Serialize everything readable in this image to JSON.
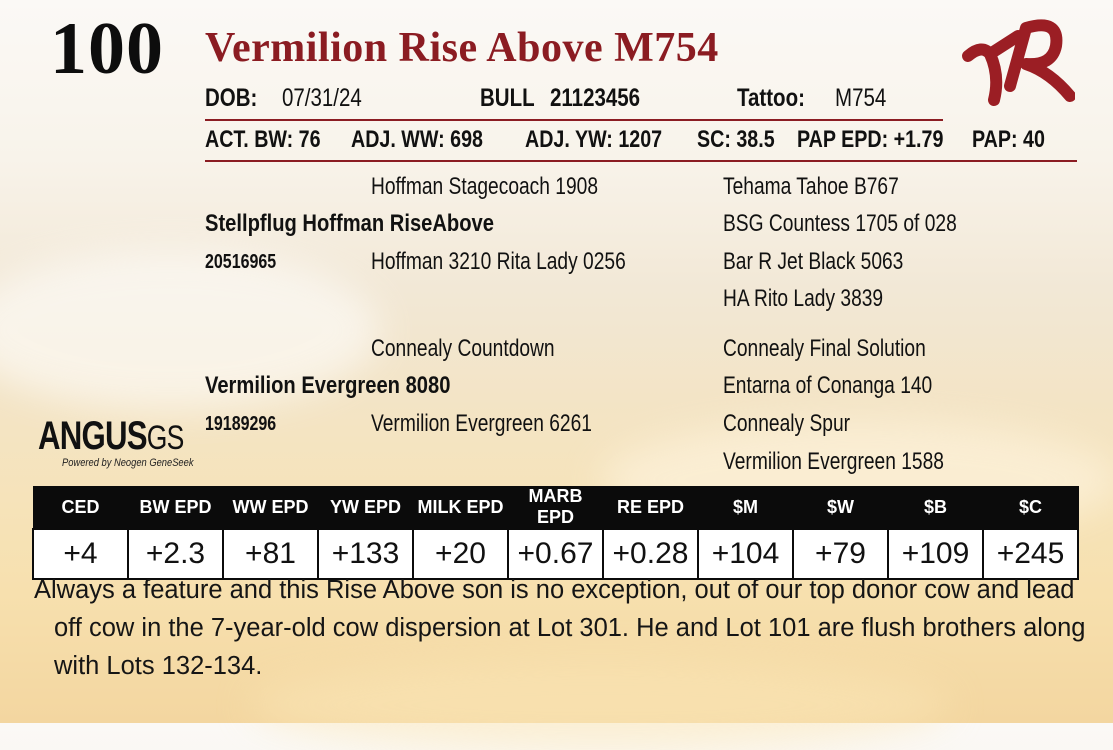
{
  "lot": {
    "number": "100"
  },
  "animal": {
    "name": "Vermilion Rise Above M754",
    "dob_label": "DOB:",
    "dob": "07/31/24",
    "type_label": "BULL",
    "reg_number": "21123456",
    "tattoo_label": "Tattoo:",
    "tattoo": "M754"
  },
  "stats": {
    "act_bw": "ACT. BW: 76",
    "adj_ww": "ADJ. WW: 698",
    "adj_yw": "ADJ. YW: 1207",
    "sc": "SC: 38.5",
    "pap_epd": "PAP EPD: +1.79",
    "pap": "PAP: 40"
  },
  "pedigree": {
    "sire": {
      "name": "Stellpflug Hoffman RiseAbove",
      "reg": "20516965"
    },
    "sire_sire": "Hoffman Stagecoach 1908",
    "sire_dam": "Hoffman 3210 Rita Lady 0256",
    "sss": "Tehama Tahoe B767",
    "ssd": "BSG Countess 1705 of 028",
    "sds": "Bar R Jet Black 5063",
    "sdd": "HA Rito Lady 3839",
    "dam": {
      "name": "Vermilion Evergreen 8080",
      "reg": "19189296"
    },
    "dam_sire": "Connealy Countdown",
    "dam_dam": "Vermilion Evergreen 6261",
    "dss": "Connealy Final Solution",
    "dsd": "Entarna of Conanga 140",
    "dds": "Connealy Spur",
    "ddd": "Vermilion Evergreen 1588"
  },
  "logo": {
    "brand_main": "ANGUS",
    "brand_gs": "GS",
    "tagline": "Powered by Neogen GeneSeek"
  },
  "epd": {
    "headers": [
      "CED",
      "BW EPD",
      "WW EPD",
      "YW EPD",
      "MILK EPD",
      "MARB EPD",
      "RE EPD",
      "$M",
      "$W",
      "$B",
      "$C"
    ],
    "values": [
      "+4",
      "+2.3",
      "+81",
      "+133",
      "+20",
      "+0.67",
      "+0.28",
      "+104",
      "+79",
      "+109",
      "+245"
    ]
  },
  "description": "Always a feature and this Rise Above son is no exception, out of our top donor cow and lead off cow in the 7-year-old cow dispersion at Lot 301.  He and Lot 101 are flush brothers along with Lots 132-134.",
  "colors": {
    "accent": "#8b1c22",
    "table_header": "#0b0b0b"
  }
}
